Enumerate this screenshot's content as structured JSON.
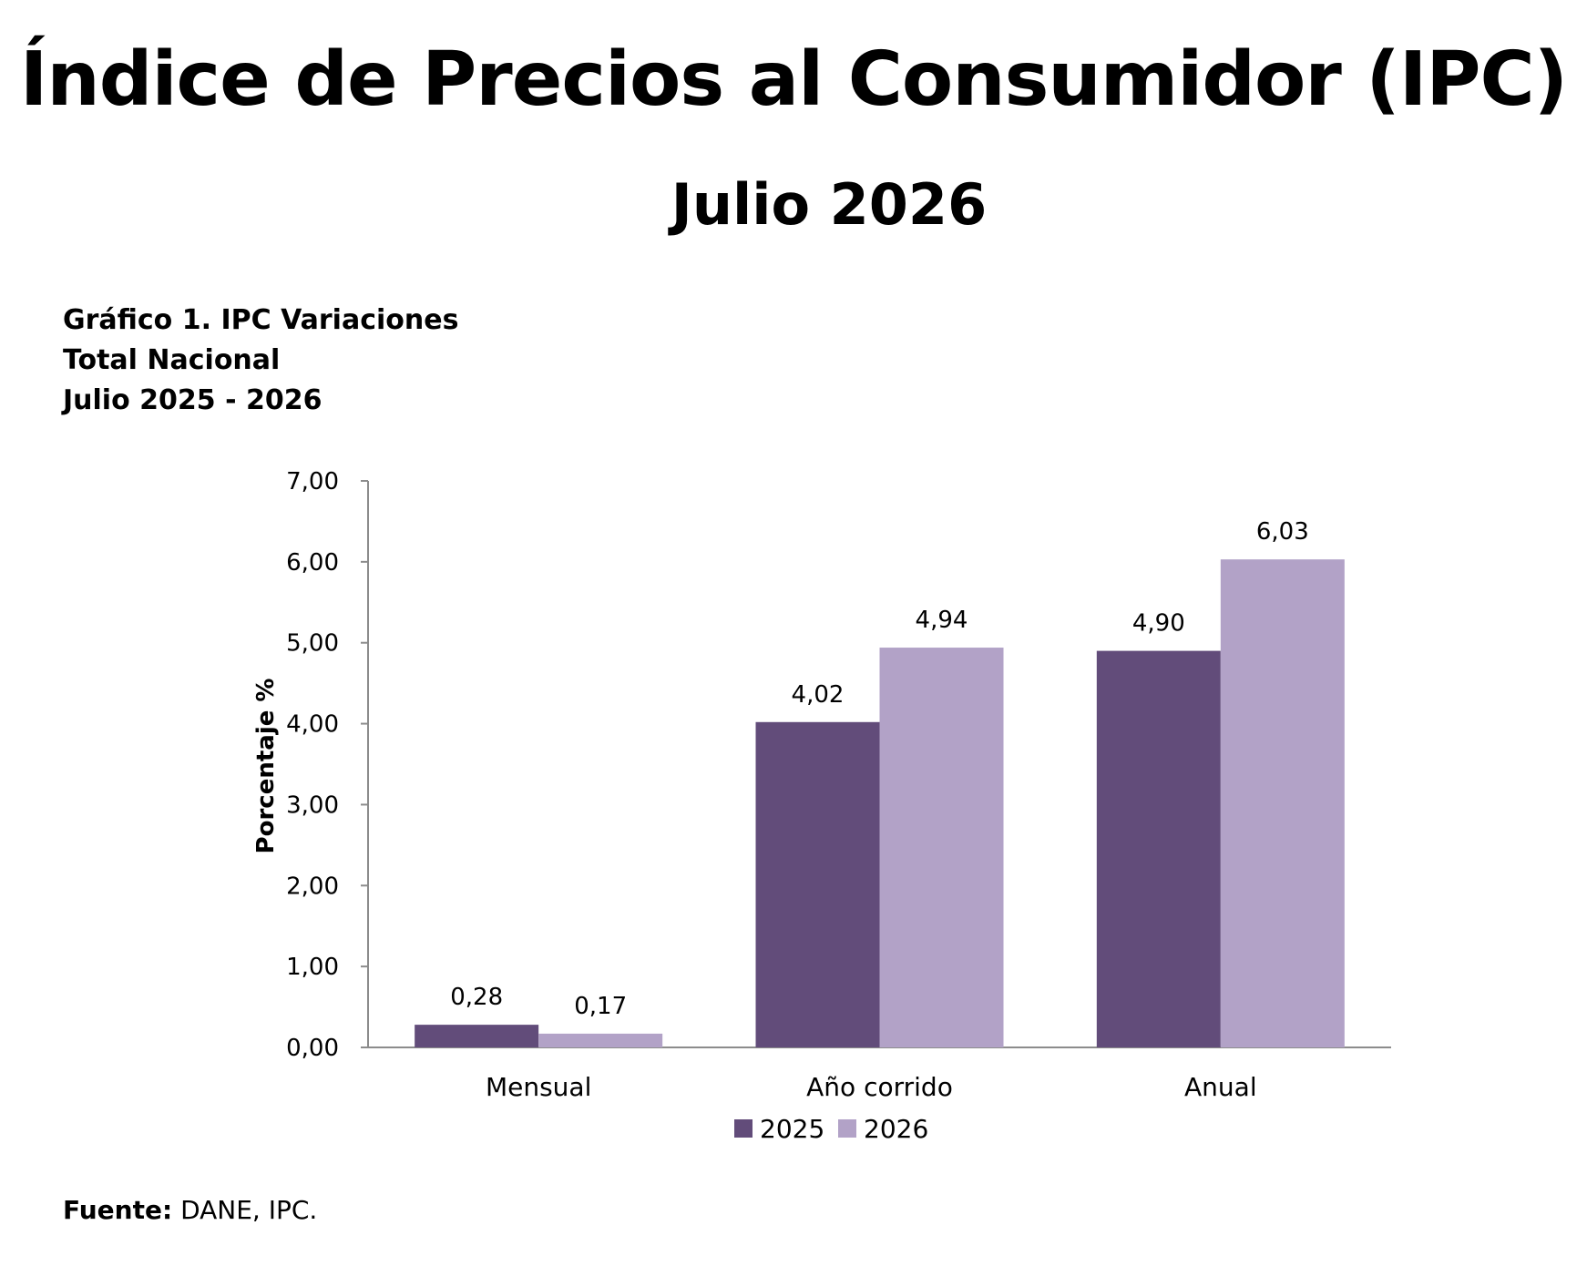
{
  "header": {
    "title": "Índice de Precios al Consumidor (IPC)",
    "subtitle": "Julio 2026"
  },
  "caption": {
    "line1": "Gráfico 1. IPC Variaciones",
    "line2": "Total Nacional",
    "line3": "Julio 2025 - 2026"
  },
  "source": {
    "label": "Fuente:",
    "text": " DANE, IPC."
  },
  "chart_data": {
    "type": "bar",
    "categories": [
      "Mensual",
      "Año corrido",
      "Anual"
    ],
    "series": [
      {
        "name": "2025",
        "values": [
          0.28,
          4.02,
          4.9
        ],
        "labels": [
          "0,28",
          "4,02",
          "4,90"
        ],
        "color": "#624c7a"
      },
      {
        "name": "2026",
        "values": [
          0.17,
          4.94,
          6.03
        ],
        "labels": [
          "0,17",
          "4,94",
          "6,03"
        ],
        "color": "#b2a2c7"
      }
    ],
    "ylabel": "Porcentaje %",
    "xlabel": "",
    "ylim": [
      0,
      7
    ],
    "yticks": [
      0,
      1,
      2,
      3,
      4,
      5,
      6,
      7
    ],
    "ytick_labels": [
      "0,00",
      "1,00",
      "2,00",
      "3,00",
      "4,00",
      "5,00",
      "6,00",
      "7,00"
    ],
    "grid": false,
    "legend_position": "bottom"
  }
}
